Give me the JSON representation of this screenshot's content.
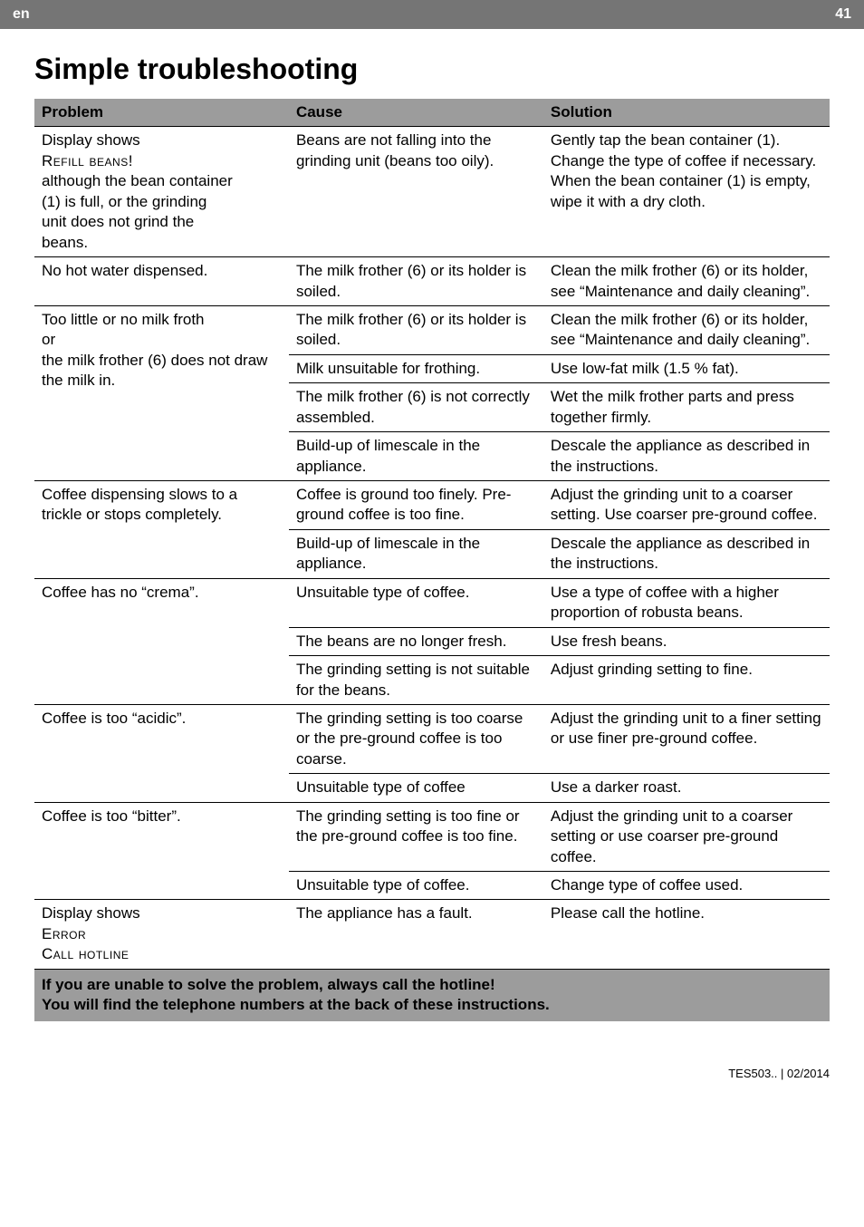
{
  "header": {
    "lang": "en",
    "page_num": "41"
  },
  "title": "Simple troubleshooting",
  "columns": {
    "c1": "Problem",
    "c2": "Cause",
    "c3": "Solution"
  },
  "rows": [
    {
      "problem_pre": "Display shows",
      "problem_sc": "Refill beans!",
      "problem_post": "although the bean container (beans too oily). (1) is full, or the grinding unit does not grind the beans.",
      "problem_lines": [
        "Display shows",
        {
          "sc": "Refill beans!"
        },
        "although the bean container",
        "(1) is full, or the grinding",
        "unit does not grind the",
        "beans."
      ],
      "cause": "Beans are not falling into the grinding unit (beans too oily).",
      "solution": "Gently tap the bean container (1). Change the type of coffee if necessary.\nWhen the bean container (1) is empty, wipe it with a dry cloth."
    },
    {
      "problem": "No hot water dispensed.",
      "cause": "The milk frother (6) or its holder is soiled.",
      "solution": "Clean the milk frother (6) or its holder, see “Maintenance and daily cleaning”."
    },
    {
      "problem": "Too little or no milk froth\nor\nthe milk frother (6) does not draw the milk in.",
      "sub": [
        {
          "cause": "The milk frother (6) or its holder is soiled.",
          "solution": "Clean the milk frother (6) or its holder, see “Maintenance and daily cleaning”."
        },
        {
          "cause": "Milk unsuitable for frothing.",
          "solution": "Use low-fat milk (1.5 % fat)."
        },
        {
          "cause": "The milk frother (6) is not correctly assembled.",
          "solution": "Wet the milk frother parts and press together firmly."
        },
        {
          "cause": "Build-up of limescale in the appliance.",
          "solution": "Descale the appliance as described in the instructions."
        }
      ]
    },
    {
      "problem": "Coffee dispensing slows to a trickle or stops completely.",
      "sub": [
        {
          "cause": "Coffee is ground too finely. Pre-ground coffee is too fine.",
          "solution": "Adjust the grinding unit to a coarser setting. Use coarser pre-ground coffee."
        },
        {
          "cause": "Build-up of limescale in the appliance.",
          "solution": "Descale the appliance as described in the instructions."
        }
      ]
    },
    {
      "problem": "Coffee has no “crema”.",
      "sub": [
        {
          "cause": "Unsuitable type of coffee.",
          "solution": "Use a type of coffee with a higher proportion of robusta beans."
        },
        {
          "cause": "The beans are no longer fresh.",
          "solution": "Use fresh beans."
        },
        {
          "cause": "The grinding setting is not suitable for the beans.",
          "solution": "Adjust grinding setting to fine."
        }
      ]
    },
    {
      "problem": "Coffee is too “acidic”.",
      "sub": [
        {
          "cause": "The grinding setting is too coarse or the pre-ground coffee is too coarse.",
          "solution": "Adjust the grinding unit to a finer setting or use finer pre-ground coffee."
        },
        {
          "cause": "Unsuitable type of coffee",
          "solution": "Use a darker roast."
        }
      ]
    },
    {
      "problem": "Coffee is too “bitter”.",
      "sub": [
        {
          "cause": "The grinding setting is too fine or the pre-ground coffee is too fine.",
          "solution": "Adjust the grinding unit to a coarser setting or use coarser pre-ground coffee."
        },
        {
          "cause": "Unsuitable type of coffee.",
          "solution": "Change type of coffee used."
        }
      ]
    },
    {
      "problem_lines": [
        "Display shows",
        {
          "sc": "Error"
        },
        {
          "sc": "Call hotline"
        }
      ],
      "cause": "The appliance has a fault.",
      "solution": "Please call the hotline."
    }
  ],
  "footer_note": "If you are unable to solve the problem, always call the hotline!\nYou will find the telephone numbers at the back of these instructions.",
  "doc_footer": "TES503..   |   02/2014"
}
